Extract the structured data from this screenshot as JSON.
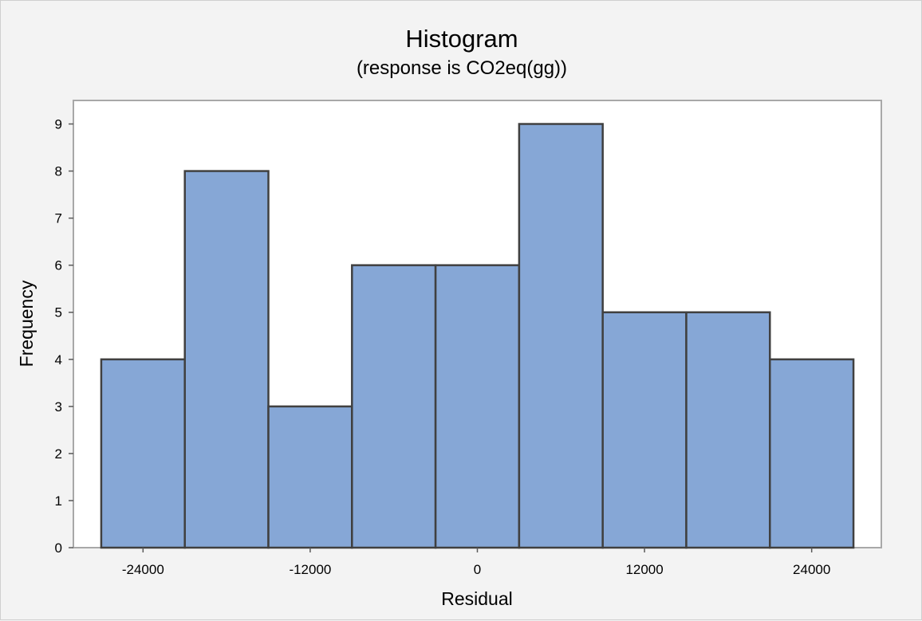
{
  "chart_data": {
    "type": "bar",
    "title": "Histogram",
    "subtitle": "(response is CO2eq(gg))",
    "xlabel": "Residual",
    "ylabel": "Frequency",
    "bins": [
      {
        "start": -27000,
        "end": -21000,
        "count": 4
      },
      {
        "start": -21000,
        "end": -15000,
        "count": 8
      },
      {
        "start": -15000,
        "end": -9000,
        "count": 3
      },
      {
        "start": -9000,
        "end": -3000,
        "count": 6
      },
      {
        "start": -3000,
        "end": 3000,
        "count": 6
      },
      {
        "start": 3000,
        "end": 9000,
        "count": 9
      },
      {
        "start": 9000,
        "end": 15000,
        "count": 5
      },
      {
        "start": 15000,
        "end": 21000,
        "count": 5
      },
      {
        "start": 21000,
        "end": 27000,
        "count": 4
      }
    ],
    "xticks": [
      "-24000",
      "-12000",
      "0",
      "12000",
      "24000"
    ],
    "yticks": [
      "0",
      "1",
      "2",
      "3",
      "4",
      "5",
      "6",
      "7",
      "8",
      "9"
    ],
    "xlim": [
      -29000,
      29000
    ],
    "ylim": [
      0,
      9.5
    ],
    "grid": false,
    "bar_color": "#86a7d6",
    "bar_edge_color": "#404040",
    "plot_background": "#ffffff",
    "figure_background": "#f3f3f3"
  }
}
